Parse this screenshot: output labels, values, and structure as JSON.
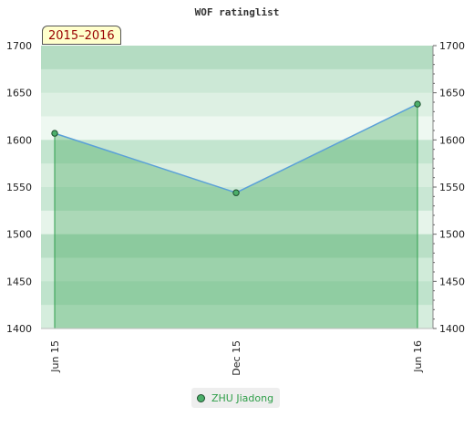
{
  "chart_data": {
    "type": "line",
    "title": "WOF ratinglist",
    "period_label": "2015–2016",
    "x": [
      "Jun 15",
      "Dec 15",
      "Jun 16"
    ],
    "series": [
      {
        "name": "ZHU Jiadong",
        "values": [
          1607,
          1544,
          1638
        ],
        "color": "#55aa66",
        "line_color": "#5aa0d8"
      }
    ],
    "ylim": [
      1400,
      1700
    ],
    "yticks": [
      1400,
      1450,
      1500,
      1550,
      1600,
      1650,
      1700
    ],
    "y_axis_both_sides": true,
    "grid": false,
    "legend": "bottom-center",
    "xtick_rotation": -90
  }
}
